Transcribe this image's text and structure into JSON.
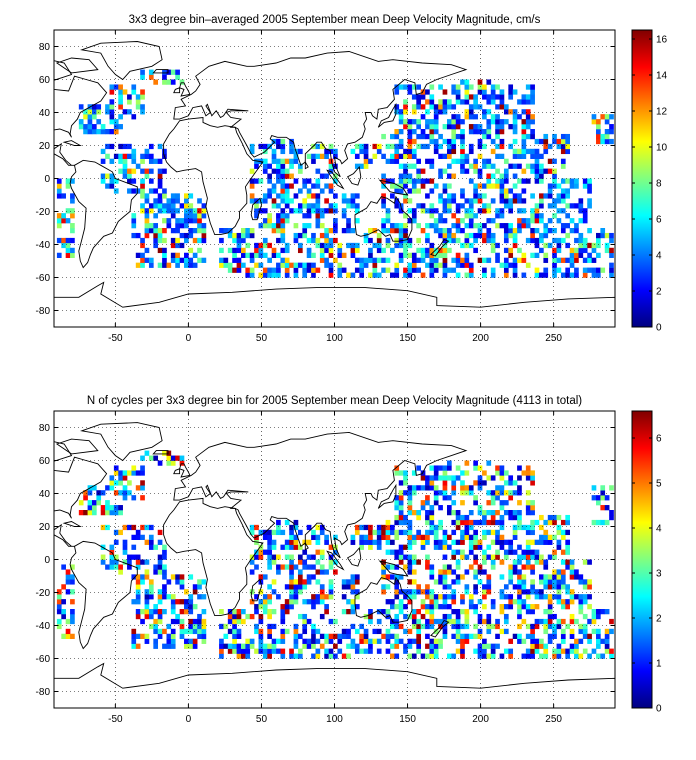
{
  "chart_data": [
    {
      "type": "heatmap",
      "title": "3x3 degree bin–averaged 2005 September mean Deep Velocity Magnitude, cm/s",
      "xlabel": "",
      "ylabel": "",
      "xlim": [
        -92,
        292
      ],
      "ylim": [
        -90,
        90
      ],
      "xticks": [
        -50,
        0,
        50,
        100,
        150,
        200,
        250
      ],
      "yticks": [
        -80,
        -60,
        -40,
        -20,
        0,
        20,
        40,
        60,
        80
      ],
      "grid": true,
      "bin_size_deg": 3,
      "colorbar": {
        "colormap": "jet",
        "range": [
          0,
          16.5
        ],
        "ticks": [
          0,
          2,
          4,
          6,
          8,
          10,
          12,
          14,
          16
        ],
        "placement": "right"
      }
    },
    {
      "type": "heatmap",
      "title": "N of cycles per 3x3 degree bin for 2005 September mean Deep Velocity Magnitude (4113 in total)",
      "xlabel": "",
      "ylabel": "",
      "xlim": [
        -92,
        292
      ],
      "ylim": [
        -90,
        90
      ],
      "xticks": [
        -50,
        0,
        50,
        100,
        150,
        200,
        250
      ],
      "yticks": [
        -80,
        -60,
        -40,
        -20,
        0,
        20,
        40,
        60,
        80
      ],
      "grid": true,
      "bin_size_deg": 3,
      "total_cycles": 4113,
      "colorbar": {
        "colormap": "jet",
        "range": [
          0,
          6.6
        ],
        "ticks": [
          0,
          1,
          2,
          3,
          4,
          5,
          6
        ],
        "placement": "right"
      }
    }
  ]
}
